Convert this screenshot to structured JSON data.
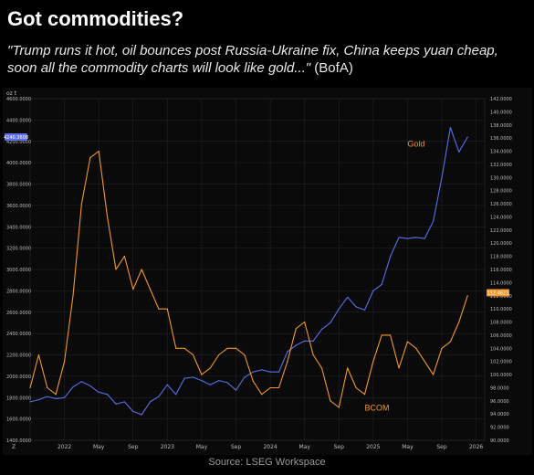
{
  "header": {
    "title": "Got commodities?",
    "subtitle_quote": "\"Trump runs it hot, oil bounces post Russia-Ukraine fix, China keeps yuan cheap, soon all the commodity charts will look like gold...\"",
    "subtitle_attribution": " (BofA)"
  },
  "footer": {
    "source": "Source: LSEG Workspace"
  },
  "chart_data": {
    "type": "line",
    "left_axis": {
      "ticks": [
        "1400.0000",
        "1600.0000",
        "1800.0000",
        "2000.0000",
        "2200.0000",
        "2400.0000",
        "2600.0000",
        "2800.0000",
        "3000.0000",
        "3200.0000",
        "3400.0000",
        "3600.0000",
        "3800.0000",
        "4000.0000",
        "4200.0000",
        "4400.0000",
        "4600.0000"
      ],
      "range": [
        1400,
        4600
      ],
      "current_label": "4240.3608",
      "current_color": "#5b6ee8"
    },
    "right_axis": {
      "ticks": [
        "90.0000",
        "92.0000",
        "94.0000",
        "96.0000",
        "98.0000",
        "100.0000",
        "102.0000",
        "104.0000",
        "106.0000",
        "108.0000",
        "110.0000",
        "112.0000",
        "114.0000",
        "116.0000",
        "118.0000",
        "120.0000",
        "122.0000",
        "124.0000",
        "126.0000",
        "128.0000",
        "130.0000",
        "132.0000",
        "134.0000",
        "136.0000",
        "138.0000",
        "140.0000",
        "142.0000"
      ],
      "range": [
        90,
        142
      ],
      "current_label": "112.4621",
      "current_color": "#f0982c"
    },
    "x_axis": {
      "ticks": [
        {
          "label": "2022",
          "date": "2022-01"
        },
        {
          "label": "May",
          "date": "2022-05"
        },
        {
          "label": "Sep",
          "date": "2022-09"
        },
        {
          "label": "2023",
          "date": "2023-01"
        },
        {
          "label": "May",
          "date": "2023-05"
        },
        {
          "label": "Sep",
          "date": "2023-09"
        },
        {
          "label": "2024",
          "date": "2024-01"
        },
        {
          "label": "May",
          "date": "2024-05"
        },
        {
          "label": "Sep",
          "date": "2024-09"
        },
        {
          "label": "2025",
          "date": "2025-01"
        },
        {
          "label": "May",
          "date": "2025-05"
        },
        {
          "label": "Sep",
          "date": "2025-09"
        },
        {
          "label": "2026",
          "date": "2026-01"
        }
      ],
      "range": [
        "2021-09",
        "2026-02"
      ]
    },
    "corner_labels": {
      "top_left": "oz t",
      "bottom_left": "Z"
    },
    "series": [
      {
        "name": "Gold",
        "axis": "left",
        "color": "#5b6ee8",
        "points": [
          [
            "2021-09",
            1760
          ],
          [
            "2021-10",
            1780
          ],
          [
            "2021-11",
            1810
          ],
          [
            "2021-12",
            1790
          ],
          [
            "2022-01",
            1800
          ],
          [
            "2022-02",
            1900
          ],
          [
            "2022-03",
            1950
          ],
          [
            "2022-04",
            1910
          ],
          [
            "2022-05",
            1850
          ],
          [
            "2022-06",
            1830
          ],
          [
            "2022-07",
            1740
          ],
          [
            "2022-08",
            1760
          ],
          [
            "2022-09",
            1670
          ],
          [
            "2022-10",
            1640
          ],
          [
            "2022-11",
            1760
          ],
          [
            "2022-12",
            1810
          ],
          [
            "2023-01",
            1920
          ],
          [
            "2023-02",
            1830
          ],
          [
            "2023-03",
            1980
          ],
          [
            "2023-04",
            1990
          ],
          [
            "2023-05",
            1960
          ],
          [
            "2023-06",
            1920
          ],
          [
            "2023-07",
            1960
          ],
          [
            "2023-08",
            1940
          ],
          [
            "2023-09",
            1870
          ],
          [
            "2023-10",
            1990
          ],
          [
            "2023-11",
            2040
          ],
          [
            "2023-12",
            2060
          ],
          [
            "2024-01",
            2040
          ],
          [
            "2024-02",
            2040
          ],
          [
            "2024-03",
            2230
          ],
          [
            "2024-04",
            2290
          ],
          [
            "2024-05",
            2330
          ],
          [
            "2024-06",
            2330
          ],
          [
            "2024-07",
            2440
          ],
          [
            "2024-08",
            2500
          ],
          [
            "2024-09",
            2630
          ],
          [
            "2024-10",
            2740
          ],
          [
            "2024-11",
            2650
          ],
          [
            "2024-12",
            2620
          ],
          [
            "2025-01",
            2800
          ],
          [
            "2025-02",
            2860
          ],
          [
            "2025-03",
            3120
          ],
          [
            "2025-04",
            3300
          ],
          [
            "2025-05",
            3290
          ],
          [
            "2025-06",
            3300
          ],
          [
            "2025-07",
            3290
          ],
          [
            "2025-08",
            3450
          ],
          [
            "2025-09",
            3860
          ],
          [
            "2025-10",
            4330
          ],
          [
            "2025-11",
            4100
          ],
          [
            "2025-12",
            4240
          ]
        ]
      },
      {
        "name": "BCOM",
        "axis": "right",
        "color": "#f0982c",
        "points": [
          [
            "2021-09",
            98
          ],
          [
            "2021-10",
            103
          ],
          [
            "2021-11",
            98
          ],
          [
            "2021-12",
            97
          ],
          [
            "2022-01",
            102
          ],
          [
            "2022-02",
            112
          ],
          [
            "2022-03",
            126
          ],
          [
            "2022-04",
            133
          ],
          [
            "2022-05",
            134
          ],
          [
            "2022-06",
            124
          ],
          [
            "2022-07",
            116
          ],
          [
            "2022-08",
            118
          ],
          [
            "2022-09",
            113
          ],
          [
            "2022-10",
            116
          ],
          [
            "2022-11",
            113
          ],
          [
            "2022-12",
            110
          ],
          [
            "2023-01",
            110
          ],
          [
            "2023-02",
            104
          ],
          [
            "2023-03",
            104
          ],
          [
            "2023-04",
            103
          ],
          [
            "2023-05",
            100
          ],
          [
            "2023-06",
            101
          ],
          [
            "2023-07",
            103
          ],
          [
            "2023-08",
            104
          ],
          [
            "2023-09",
            104
          ],
          [
            "2023-10",
            103
          ],
          [
            "2023-11",
            99
          ],
          [
            "2023-12",
            97
          ],
          [
            "2024-01",
            98
          ],
          [
            "2024-02",
            98
          ],
          [
            "2024-03",
            102
          ],
          [
            "2024-04",
            107
          ],
          [
            "2024-05",
            108
          ],
          [
            "2024-06",
            103
          ],
          [
            "2024-07",
            101
          ],
          [
            "2024-08",
            96
          ],
          [
            "2024-09",
            95
          ],
          [
            "2024-10",
            101
          ],
          [
            "2024-11",
            98
          ],
          [
            "2024-12",
            97
          ],
          [
            "2025-01",
            102
          ],
          [
            "2025-02",
            106
          ],
          [
            "2025-03",
            106
          ],
          [
            "2025-04",
            101
          ],
          [
            "2025-05",
            105
          ],
          [
            "2025-06",
            104
          ],
          [
            "2025-07",
            102
          ],
          [
            "2025-08",
            100
          ],
          [
            "2025-09",
            104
          ],
          [
            "2025-10",
            105
          ],
          [
            "2025-11",
            108
          ],
          [
            "2025-12",
            112
          ]
        ]
      }
    ],
    "labels": [
      {
        "text": "Gold",
        "series": "Gold"
      },
      {
        "text": "BCOM",
        "series": "BCOM"
      }
    ],
    "grid": true,
    "legend": "none"
  }
}
